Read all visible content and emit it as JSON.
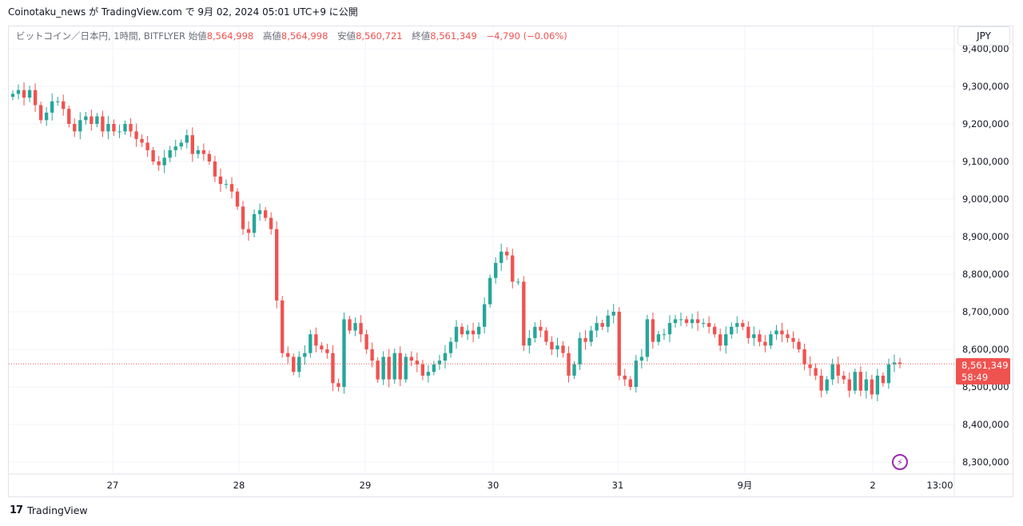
{
  "header": {
    "caption": "Coinotaku_news が TradingView.com で 9月 02, 2024 05:01 UTC+9 に公開"
  },
  "legend": {
    "symbol": "ビットコイン／日本円, 1時間, BITFLYER",
    "open_label": "始値",
    "open": "8,564,998",
    "high_label": "高値",
    "high": "8,564,998",
    "low_label": "安値",
    "low": "8,560,721",
    "close_label": "終値",
    "close": "8,561,349",
    "change": "−4,790 (−0.06%)"
  },
  "toolbar": {
    "currency": "JPY"
  },
  "price_badge": {
    "price": "8,561,349",
    "countdown": "58:49"
  },
  "footer": {
    "logo": "𝟭𝟳",
    "brand": "TradingView"
  },
  "colors": {
    "up": "#26a69a",
    "down": "#ef5350",
    "grid": "#f0f3fa",
    "accent": "#9c27b0"
  },
  "chart_data": {
    "type": "candlestick",
    "interval": "1時間",
    "y_ticks": [
      "9,400,000",
      "9,300,000",
      "9,200,000",
      "9,100,000",
      "9,000,000",
      "8,900,000",
      "8,800,000",
      "8,700,000",
      "8,600,000",
      "8,500,000",
      "8,400,000",
      "8,300,000"
    ],
    "y_values": [
      9400000,
      9300000,
      9200000,
      9100000,
      9000000,
      8900000,
      8800000,
      8700000,
      8600000,
      8500000,
      8400000,
      8300000
    ],
    "x_ticks": [
      "27",
      "28",
      "29",
      "30",
      "31",
      "9月",
      "2",
      "13:00"
    ],
    "last_price": 8561349,
    "closes": [
      9280000,
      9290000,
      9270000,
      9290000,
      9250000,
      9210000,
      9230000,
      9260000,
      9260000,
      9240000,
      9200000,
      9180000,
      9210000,
      9220000,
      9200000,
      9220000,
      9180000,
      9200000,
      9180000,
      9180000,
      9200000,
      9180000,
      9160000,
      9150000,
      9130000,
      9100000,
      9090000,
      9110000,
      9130000,
      9140000,
      9150000,
      9170000,
      9120000,
      9130000,
      9120000,
      9100000,
      9060000,
      9040000,
      9040000,
      9020000,
      8980000,
      8920000,
      8910000,
      8960000,
      8970000,
      8950000,
      8920000,
      8730000,
      8590000,
      8580000,
      8540000,
      8580000,
      8590000,
      8640000,
      8610000,
      8600000,
      8590000,
      8510000,
      8500000,
      8680000,
      8650000,
      8670000,
      8640000,
      8600000,
      8570000,
      8520000,
      8580000,
      8520000,
      8590000,
      8520000,
      8580000,
      8570000,
      8560000,
      8530000,
      8540000,
      8560000,
      8570000,
      8590000,
      8620000,
      8660000,
      8640000,
      8650000,
      8640000,
      8660000,
      8720000,
      8790000,
      8830000,
      8860000,
      8850000,
      8780000,
      8780000,
      8610000,
      8630000,
      8660000,
      8650000,
      8620000,
      8600000,
      8610000,
      8590000,
      8530000,
      8560000,
      8630000,
      8620000,
      8650000,
      8670000,
      8660000,
      8690000,
      8700000,
      8530000,
      8520000,
      8500000,
      8570000,
      8580000,
      8680000,
      8620000,
      8640000,
      8640000,
      8670000,
      8680000,
      8680000,
      8670000,
      8680000,
      8670000,
      8670000,
      8660000,
      8640000,
      8610000,
      8640000,
      8660000,
      8670000,
      8660000,
      8630000,
      8640000,
      8620000,
      8610000,
      8640000,
      8650000,
      8640000,
      8630000,
      8620000,
      8600000,
      8560000,
      8550000,
      8530000,
      8490000,
      8520000,
      8560000,
      8530000,
      8520000,
      8490000,
      8540000,
      8490000,
      8520000,
      8480000,
      8530000,
      8510000,
      8560000,
      8565000,
      8561349
    ]
  }
}
